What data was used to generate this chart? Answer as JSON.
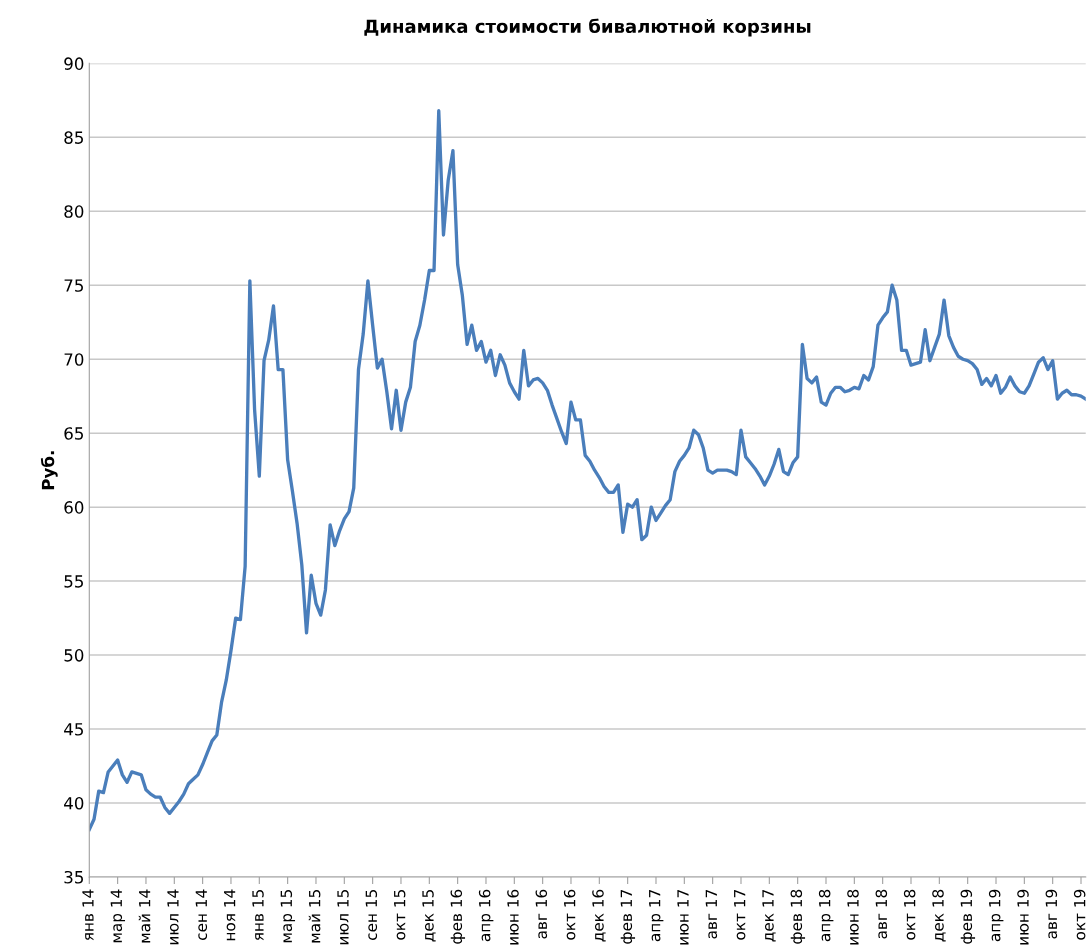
{
  "chart_data": {
    "type": "line",
    "title": "Динамика стоимости бивалютной корзины",
    "ylabel": "Руб.",
    "categories": [
      "янв 14",
      null,
      null,
      null,
      null,
      null,
      "мар 14",
      null,
      null,
      null,
      null,
      null,
      "май 14",
      null,
      null,
      null,
      null,
      null,
      "июл 14",
      null,
      null,
      null,
      null,
      null,
      "сен 14",
      null,
      null,
      null,
      null,
      null,
      "ноя 14",
      null,
      null,
      null,
      null,
      null,
      "янв 15",
      null,
      null,
      null,
      null,
      null,
      "мар 15",
      null,
      null,
      null,
      null,
      null,
      "май 15",
      null,
      null,
      null,
      null,
      null,
      "июл 15",
      null,
      null,
      null,
      null,
      null,
      "сен 15",
      null,
      null,
      null,
      null,
      null,
      "окт 15",
      null,
      null,
      null,
      null,
      null,
      "дек 15",
      null,
      null,
      null,
      null,
      null,
      "фев 16",
      null,
      null,
      null,
      null,
      null,
      "апр 16",
      null,
      null,
      null,
      null,
      null,
      "июн 16",
      null,
      null,
      null,
      null,
      null,
      "авг 16",
      null,
      null,
      null,
      null,
      null,
      "окт 16",
      null,
      null,
      null,
      null,
      null,
      "дек 16",
      null,
      null,
      null,
      null,
      null,
      "фев 17",
      null,
      null,
      null,
      null,
      null,
      "апр 17",
      null,
      null,
      null,
      null,
      null,
      "июн 17",
      null,
      null,
      null,
      null,
      null,
      "авг 17",
      null,
      null,
      null,
      null,
      null,
      "окт 17",
      null,
      null,
      null,
      null,
      null,
      "дек 17",
      null,
      null,
      null,
      null,
      null,
      "фев 18",
      null,
      null,
      null,
      null,
      null,
      "апр 18",
      null,
      null,
      null,
      null,
      null,
      "июн 18",
      null,
      null,
      null,
      null,
      null,
      "авг 18",
      null,
      null,
      null,
      null,
      null,
      "окт 18",
      null,
      null,
      null,
      null,
      null,
      "дек 18",
      null,
      null,
      null,
      null,
      null,
      "фев 19",
      null,
      null,
      null,
      null,
      null,
      "апр 19",
      null,
      null,
      null,
      null,
      null,
      "июн 19",
      null,
      null,
      null,
      null,
      null,
      "авг 19",
      null,
      null,
      null,
      null,
      null,
      "окт 19",
      null
    ],
    "ylim": [
      35,
      90
    ],
    "yticks": [
      35,
      40,
      45,
      50,
      55,
      60,
      65,
      70,
      75,
      80,
      85,
      90
    ],
    "grid": "y",
    "marker": "none",
    "line_style": "solid",
    "series": [
      {
        "color": "#4a7ebb",
        "values": [
          38.2,
          38.9,
          40.8,
          40.7,
          42.1,
          42.5,
          42.9,
          41.9,
          41.4,
          42.1,
          42.0,
          41.9,
          40.9,
          40.6,
          40.4,
          40.4,
          39.7,
          39.3,
          39.7,
          40.1,
          40.6,
          41.3,
          41.6,
          41.9,
          42.6,
          43.4,
          44.2,
          44.6,
          46.8,
          48.3,
          50.3,
          52.5,
          52.4,
          56.0,
          75.3,
          66.6,
          62.1,
          69.9,
          71.3,
          73.6,
          69.3,
          69.3,
          63.2,
          61.1,
          58.9,
          56.1,
          51.5,
          55.4,
          53.5,
          52.7,
          54.4,
          58.8,
          57.4,
          58.4,
          59.2,
          59.7,
          61.3,
          69.3,
          71.7,
          75.3,
          72.3,
          69.4,
          70.0,
          67.8,
          65.3,
          67.9,
          65.2,
          67.1,
          68.1,
          71.2,
          72.3,
          74.0,
          76.0,
          76.0,
          86.8,
          78.4,
          82.1,
          84.1,
          76.4,
          74.3,
          71.0,
          72.3,
          70.6,
          71.2,
          69.8,
          70.6,
          68.9,
          70.3,
          69.6,
          68.4,
          67.8,
          67.3,
          70.6,
          68.2,
          68.6,
          68.7,
          68.4,
          67.9,
          66.9,
          66.0,
          65.1,
          64.3,
          67.1,
          65.9,
          65.9,
          63.5,
          63.1,
          62.5,
          62.0,
          61.4,
          61.0,
          61.0,
          61.5,
          58.3,
          60.2,
          60.0,
          60.5,
          57.8,
          58.1,
          60.0,
          59.1,
          59.6,
          60.1,
          60.5,
          62.4,
          63.1,
          63.5,
          64.0,
          65.2,
          64.9,
          64.0,
          62.5,
          62.3,
          62.5,
          62.5,
          62.5,
          62.4,
          62.2,
          65.2,
          63.4,
          63.0,
          62.6,
          62.1,
          61.5,
          62.1,
          62.9,
          63.9,
          62.4,
          62.2,
          63.0,
          63.4,
          71.0,
          68.7,
          68.4,
          68.8,
          67.1,
          66.9,
          67.7,
          68.1,
          68.1,
          67.8,
          67.9,
          68.1,
          68.0,
          68.9,
          68.6,
          69.5,
          72.3,
          72.8,
          73.2,
          75.0,
          74.0,
          70.6,
          70.6,
          69.6,
          69.7,
          69.8,
          72.0,
          69.9,
          70.8,
          71.7,
          74.0,
          71.6,
          70.8,
          70.2,
          70.0,
          69.9,
          69.7,
          69.3,
          68.3,
          68.7,
          68.2,
          68.9,
          67.7,
          68.1,
          68.8,
          68.2,
          67.8,
          67.7,
          68.2,
          69.0,
          69.8,
          70.1,
          69.3,
          69.9,
          67.3,
          67.7,
          67.9,
          67.6,
          67.6,
          67.5,
          67.3
        ]
      }
    ]
  }
}
